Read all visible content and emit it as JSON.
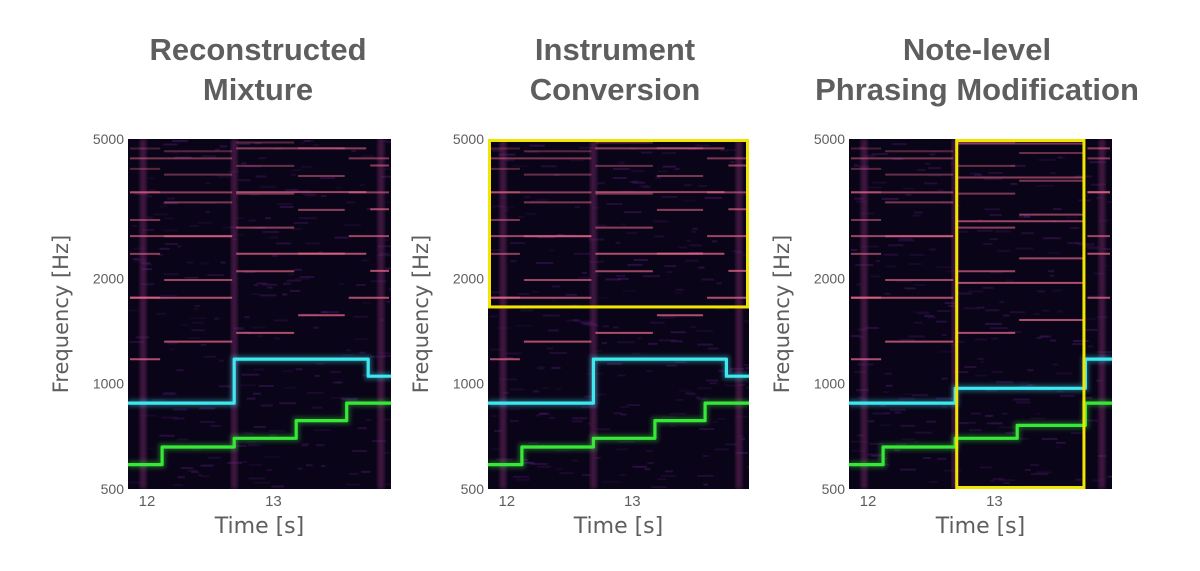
{
  "colors": {
    "background": "#0a0418",
    "harmonic": "#e8688a",
    "harmonic_glow": "#8a2a78",
    "cyan_track": "#3ee8f0",
    "green_track": "#38e838",
    "highlight_box": "#f2e600",
    "text": "#5e5e5e"
  },
  "chart_data": [
    {
      "type": "heatmap",
      "title_lines": [
        "Reconstructed",
        "Mixture"
      ],
      "xlabel": "Time [s]",
      "ylabel": "Frequency [Hz]",
      "xlim": [
        11.85,
        13.93
      ],
      "ylim": [
        500,
        5000
      ],
      "yscale": "log",
      "xticks": [
        12,
        13
      ],
      "yticks": [
        500,
        1000,
        2000,
        5000
      ],
      "series": [
        {
          "color": "cyan",
          "segments": [
            [
              11.85,
              12.69,
              880
            ],
            [
              12.69,
              13.75,
              1175
            ],
            [
              13.75,
              13.93,
              1050
            ]
          ]
        },
        {
          "color": "green",
          "segments": [
            [
              11.85,
              12.12,
              587
            ],
            [
              12.12,
              12.69,
              659
            ],
            [
              12.69,
              13.18,
              698
            ],
            [
              13.18,
              13.58,
              784
            ],
            [
              13.58,
              13.93,
              880
            ]
          ]
        }
      ],
      "boxes": []
    },
    {
      "type": "heatmap",
      "title_lines": [
        "Instrument",
        "Conversion"
      ],
      "xlabel": "Time [s]",
      "ylabel": "Frequency [Hz]",
      "xlim": [
        11.85,
        13.93
      ],
      "ylim": [
        500,
        5000
      ],
      "yscale": "log",
      "xticks": [
        12,
        13
      ],
      "yticks": [
        500,
        1000,
        2000,
        5000
      ],
      "series": [
        {
          "color": "cyan",
          "segments": [
            [
              11.85,
              12.69,
              880
            ],
            [
              12.69,
              13.75,
              1175
            ],
            [
              13.75,
              13.93,
              1050
            ]
          ]
        },
        {
          "color": "green",
          "segments": [
            [
              11.85,
              12.12,
              587
            ],
            [
              12.12,
              12.69,
              659
            ],
            [
              12.69,
              13.18,
              698
            ],
            [
              13.18,
              13.58,
              784
            ],
            [
              13.58,
              13.93,
              880
            ]
          ]
        }
      ],
      "boxes": [
        {
          "t0": 11.85,
          "t1": 13.93,
          "f0": 1640,
          "f1": 5000
        }
      ]
    },
    {
      "type": "heatmap",
      "title_lines": [
        "Note-level",
        "Phrasing Modification"
      ],
      "xlabel": "Time [s]",
      "ylabel": "Frequency [Hz]",
      "xlim": [
        11.85,
        13.93
      ],
      "ylim": [
        500,
        5000
      ],
      "yscale": "log",
      "xticks": [
        12,
        13
      ],
      "yticks": [
        500,
        1000,
        2000,
        5000
      ],
      "series": [
        {
          "color": "cyan",
          "segments": [
            [
              11.85,
              12.69,
              880
            ],
            [
              12.69,
              13.72,
              970
            ],
            [
              13.72,
              13.93,
              1175
            ]
          ]
        },
        {
          "color": "green",
          "segments": [
            [
              11.85,
              12.12,
              587
            ],
            [
              12.12,
              12.69,
              659
            ],
            [
              12.69,
              13.18,
              698
            ],
            [
              13.18,
              13.72,
              760
            ],
            [
              13.72,
              13.93,
              880
            ]
          ]
        }
      ],
      "boxes": [
        {
          "t0": 12.69,
          "t1": 13.72,
          "f0": 500,
          "f1": 5000
        }
      ]
    }
  ]
}
